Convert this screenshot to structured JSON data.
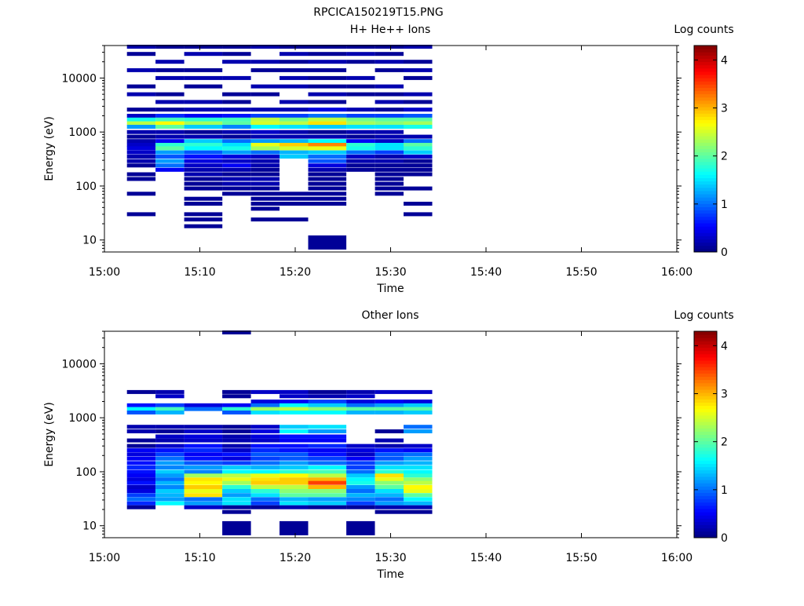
{
  "figure_title": "RPCICA150219T15.PNG",
  "chart_data": [
    {
      "type": "heatmap",
      "title": "H+ He++ Ions",
      "xlabel": "Time",
      "ylabel": "Energy (eV)",
      "x_ticks": [
        "15:00",
        "15:10",
        "15:20",
        "15:30",
        "15:40",
        "15:50",
        "16:00"
      ],
      "x_range": [
        "15:00",
        "16:00"
      ],
      "y_scale": "log",
      "y_ticks": [
        10,
        100,
        1000,
        10000
      ],
      "y_range": [
        6,
        40000
      ],
      "colorbar": {
        "label": "Log counts",
        "range": [
          0,
          4.3
        ],
        "ticks": [
          0,
          1,
          2,
          3,
          4
        ]
      },
      "time_bins": [
        [
          "15:01",
          "15:04"
        ],
        [
          "15:04",
          "15:07"
        ],
        [
          "15:07",
          "15:11"
        ],
        [
          "15:11",
          "15:14"
        ],
        [
          "15:14",
          "15:17"
        ],
        [
          "15:17",
          "15:20"
        ],
        [
          "15:20",
          "15:24"
        ],
        [
          "15:24",
          "15:27"
        ],
        [
          "15:27",
          "15:30"
        ],
        [
          "15:30",
          "15:33"
        ]
      ],
      "energy_rows": [
        {
          "e": 38000,
          "v": [
            0.2,
            0.1,
            0.1,
            0.1,
            0.2,
            0.1,
            0.1,
            0.1,
            0.1,
            0.2
          ]
        },
        {
          "e": 28000,
          "v": [
            0.1,
            null,
            0.2,
            0.1,
            null,
            0.2,
            0.1,
            0.2,
            0.1,
            null
          ]
        },
        {
          "e": 20000,
          "v": [
            null,
            0.2,
            null,
            0.2,
            0.2,
            0.1,
            0.2,
            0.1,
            0.2,
            0.1
          ]
        },
        {
          "e": 14000,
          "v": [
            0.2,
            0.1,
            0.1,
            null,
            0.1,
            0.1,
            0.1,
            null,
            0.1,
            0.2
          ]
        },
        {
          "e": 10000,
          "v": [
            null,
            0.2,
            0.2,
            0.2,
            null,
            0.2,
            0.1,
            0.2,
            null,
            0.1
          ]
        },
        {
          "e": 7000,
          "v": [
            0.1,
            null,
            0.1,
            null,
            0.2,
            0.2,
            0.1,
            0.1,
            0.2,
            null
          ]
        },
        {
          "e": 5000,
          "v": [
            0.2,
            0.1,
            null,
            0.1,
            0.1,
            null,
            0.2,
            0.1,
            0.1,
            0.2
          ]
        },
        {
          "e": 3600,
          "v": [
            null,
            0.2,
            0.2,
            0.1,
            null,
            0.2,
            0.1,
            null,
            0.2,
            0.1
          ]
        },
        {
          "e": 2600,
          "v": [
            0.1,
            0.1,
            0.2,
            0.2,
            0.2,
            0.2,
            0.4,
            0.2,
            0.1,
            0.3
          ]
        },
        {
          "e": 2000,
          "v": [
            0.3,
            0.7,
            0.5,
            0.6,
            0.8,
            0.8,
            1.0,
            0.8,
            0.8,
            0.9
          ]
        },
        {
          "e": 1700,
          "v": [
            1.7,
            1.9,
            1.8,
            1.9,
            2.4,
            2.1,
            2.4,
            2.1,
            2.0,
            2.0
          ]
        },
        {
          "e": 1450,
          "v": [
            2.4,
            2.7,
            2.3,
            2.0,
            2.5,
            2.4,
            2.8,
            2.3,
            2.2,
            2.3
          ]
        },
        {
          "e": 1250,
          "v": [
            1.2,
            2.0,
            1.4,
            1.1,
            1.6,
            1.5,
            1.4,
            1.5,
            1.5,
            1.7
          ]
        },
        {
          "e": 1000,
          "v": [
            0.2,
            0.2,
            0.1,
            0.2,
            0.3,
            0.2,
            0.1,
            0.2,
            0.2,
            null
          ]
        },
        {
          "e": 820,
          "v": [
            0.1,
            0.2,
            0.2,
            0.1,
            0.2,
            0.2,
            0.2,
            0.1,
            0.2,
            0.2
          ]
        },
        {
          "e": 680,
          "v": [
            0.2,
            0.5,
            1.4,
            1.0,
            1.2,
            1.3,
            1.6,
            0.5,
            0.3,
            1.0
          ]
        },
        {
          "e": 580,
          "v": [
            0.3,
            1.8,
            1.8,
            1.5,
            2.6,
            2.9,
            3.2,
            1.8,
            1.5,
            2.0
          ]
        },
        {
          "e": 500,
          "v": [
            0.4,
            2.0,
            1.6,
            1.7,
            2.3,
            2.5,
            2.6,
            1.7,
            1.5,
            1.8
          ]
        },
        {
          "e": 420,
          "v": [
            0.3,
            1.2,
            0.9,
            1.2,
            1.0,
            1.3,
            1.4,
            1.0,
            0.8,
            1.4
          ]
        },
        {
          "e": 350,
          "v": [
            0.2,
            0.9,
            0.6,
            0.4,
            0.3,
            1.4,
            1.0,
            0.3,
            0.2,
            0.3
          ]
        },
        {
          "e": 290,
          "v": [
            0.2,
            1.2,
            0.4,
            0.3,
            0.2,
            null,
            0.9,
            0.2,
            0.2,
            0.1
          ]
        },
        {
          "e": 240,
          "v": [
            0.1,
            1.0,
            0.3,
            0.5,
            0.2,
            null,
            0.4,
            0.1,
            0.1,
            0.1
          ]
        },
        {
          "e": 200,
          "v": [
            null,
            0.5,
            0.2,
            0.2,
            0.1,
            null,
            0.2,
            0.1,
            0.1,
            0.1
          ]
        },
        {
          "e": 165,
          "v": [
            0.1,
            null,
            0.2,
            0.1,
            0.1,
            null,
            0.1,
            null,
            0.1,
            0.1
          ]
        },
        {
          "e": 135,
          "v": [
            0.1,
            null,
            0.1,
            0.2,
            0.2,
            null,
            0.1,
            null,
            0.1,
            null
          ]
        },
        {
          "e": 110,
          "v": [
            null,
            null,
            0.1,
            0.2,
            0.2,
            null,
            0.1,
            null,
            0.1,
            null
          ]
        },
        {
          "e": 90,
          "v": [
            null,
            null,
            0.1,
            0.1,
            0.1,
            null,
            0.1,
            null,
            0.1,
            0.1
          ]
        },
        {
          "e": 72,
          "v": [
            0.1,
            null,
            null,
            0.1,
            0.1,
            0.1,
            0.1,
            null,
            0.1,
            null
          ]
        },
        {
          "e": 58,
          "v": [
            null,
            null,
            0.1,
            null,
            0.1,
            0.1,
            0.1,
            null,
            null,
            null
          ]
        },
        {
          "e": 47,
          "v": [
            null,
            null,
            0.1,
            null,
            0.1,
            0.1,
            0.1,
            null,
            null,
            0.1
          ]
        },
        {
          "e": 38,
          "v": [
            null,
            null,
            null,
            null,
            0.1,
            null,
            null,
            null,
            null,
            null
          ]
        },
        {
          "e": 30,
          "v": [
            0.1,
            null,
            0.1,
            null,
            null,
            null,
            null,
            null,
            null,
            0.1
          ]
        },
        {
          "e": 24,
          "v": [
            null,
            null,
            0.1,
            null,
            0.1,
            0.1,
            null,
            null,
            null,
            null
          ]
        },
        {
          "e": 18,
          "v": [
            null,
            null,
            0.1,
            null,
            null,
            null,
            null,
            null,
            null,
            null
          ]
        },
        {
          "e": 9,
          "v": [
            null,
            null,
            null,
            null,
            null,
            null,
            0.1,
            null,
            null,
            null
          ]
        }
      ]
    },
    {
      "type": "heatmap",
      "title": "Other Ions",
      "xlabel": "Time",
      "ylabel": "Energy (eV)",
      "x_ticks": [
        "15:00",
        "15:10",
        "15:20",
        "15:30",
        "15:40",
        "15:50",
        "16:00"
      ],
      "x_range": [
        "15:00",
        "16:00"
      ],
      "y_scale": "log",
      "y_ticks": [
        10,
        100,
        1000,
        10000
      ],
      "y_range": [
        6,
        40000
      ],
      "colorbar": {
        "label": "Log counts",
        "range": [
          0,
          4.3
        ],
        "ticks": [
          0,
          1,
          2,
          3,
          4
        ]
      },
      "time_bins": [
        [
          "15:01",
          "15:04"
        ],
        [
          "15:04",
          "15:07"
        ],
        [
          "15:07",
          "15:11"
        ],
        [
          "15:11",
          "15:14"
        ],
        [
          "15:14",
          "15:17"
        ],
        [
          "15:17",
          "15:20"
        ],
        [
          "15:20",
          "15:24"
        ],
        [
          "15:24",
          "15:27"
        ],
        [
          "15:27",
          "15:30"
        ],
        [
          "15:30",
          "15:33"
        ]
      ],
      "energy_rows": [
        {
          "e": 38000,
          "v": [
            null,
            null,
            null,
            0.1,
            null,
            null,
            null,
            null,
            null,
            null
          ]
        },
        {
          "e": 3000,
          "v": [
            0.1,
            0.2,
            null,
            0.1,
            0.3,
            0.3,
            0.1,
            0.2,
            0.3,
            0.3
          ]
        },
        {
          "e": 2500,
          "v": [
            null,
            0.3,
            null,
            0.1,
            null,
            0.3,
            0.2,
            0.3,
            null,
            null
          ]
        },
        {
          "e": 2000,
          "v": [
            null,
            null,
            null,
            null,
            0.4,
            0.5,
            0.8,
            0.4,
            0.5,
            0.4
          ]
        },
        {
          "e": 1700,
          "v": [
            0.6,
            0.8,
            0.4,
            0.5,
            1.0,
            1.6,
            1.4,
            1.0,
            1.2,
            1.4
          ]
        },
        {
          "e": 1450,
          "v": [
            1.6,
            1.9,
            1.0,
            1.8,
            2.3,
            2.4,
            2.2,
            2.0,
            2.0,
            2.0
          ]
        },
        {
          "e": 1250,
          "v": [
            0.9,
            1.3,
            null,
            0.9,
            1.5,
            1.6,
            1.6,
            1.3,
            1.3,
            1.4
          ]
        },
        {
          "e": 680,
          "v": [
            0.2,
            0.2,
            0.2,
            0.1,
            0.3,
            1.4,
            1.5,
            null,
            null,
            1.0
          ]
        },
        {
          "e": 560,
          "v": [
            0.2,
            0.1,
            0.3,
            0.1,
            0.4,
            1.6,
            1.2,
            null,
            0.1,
            1.2
          ]
        },
        {
          "e": 450,
          "v": [
            null,
            0.3,
            0.4,
            0.2,
            0.4,
            0.6,
            0.6,
            null,
            null,
            null
          ]
        },
        {
          "e": 380,
          "v": [
            0.1,
            0.2,
            0.3,
            0.2,
            0.3,
            0.5,
            0.5,
            null,
            0.2,
            null
          ]
        },
        {
          "e": 300,
          "v": [
            0.1,
            0.3,
            0.6,
            0.2,
            0.6,
            0.6,
            0.7,
            0.3,
            0.2,
            0.3
          ]
        },
        {
          "e": 250,
          "v": [
            0.5,
            0.6,
            0.7,
            0.3,
            0.7,
            0.6,
            0.5,
            0.4,
            0.6,
            0.5
          ]
        },
        {
          "e": 210,
          "v": [
            0.4,
            0.8,
            0.5,
            0.6,
            0.9,
            0.9,
            0.6,
            0.3,
            0.9,
            1.0
          ]
        },
        {
          "e": 175,
          "v": [
            0.5,
            1.0,
            0.6,
            0.4,
            0.8,
            0.9,
            0.8,
            0.5,
            0.9,
            1.2
          ]
        },
        {
          "e": 145,
          "v": [
            0.6,
            1.2,
            0.9,
            0.8,
            1.0,
            1.2,
            1.0,
            0.8,
            1.2,
            1.3
          ]
        },
        {
          "e": 120,
          "v": [
            0.7,
            1.1,
            1.2,
            1.4,
            1.3,
            1.4,
            1.6,
            0.8,
            1.5,
            1.5
          ]
        },
        {
          "e": 100,
          "v": [
            0.6,
            1.4,
            1.1,
            1.6,
            1.6,
            1.8,
            1.9,
            1.0,
            1.8,
            1.6
          ]
        },
        {
          "e": 85,
          "v": [
            0.5,
            1.2,
            2.3,
            2.4,
            2.6,
            2.7,
            2.4,
            1.4,
            2.8,
            1.8
          ]
        },
        {
          "e": 72,
          "v": [
            0.4,
            1.0,
            2.8,
            2.6,
            2.8,
            2.9,
            3.0,
            1.6,
            2.6,
            2.2
          ]
        },
        {
          "e": 62,
          "v": [
            0.6,
            1.3,
            2.7,
            2.3,
            2.9,
            2.9,
            3.5,
            1.7,
            2.2,
            2.4
          ]
        },
        {
          "e": 52,
          "v": [
            0.3,
            1.1,
            2.9,
            1.8,
            2.4,
            2.4,
            3.0,
            1.2,
            2.0,
            2.7
          ]
        },
        {
          "e": 44,
          "v": [
            0.4,
            1.4,
            2.6,
            1.4,
            1.8,
            2.2,
            2.2,
            1.0,
            1.5,
            2.6
          ]
        },
        {
          "e": 37,
          "v": [
            0.8,
            1.3,
            2.8,
            1.2,
            1.5,
            2.0,
            2.0,
            1.3,
            1.3,
            2.0
          ]
        },
        {
          "e": 31,
          "v": [
            1.0,
            1.2,
            1.0,
            1.5,
            1.0,
            1.3,
            1.2,
            1.1,
            1.0,
            1.6
          ]
        },
        {
          "e": 26,
          "v": [
            0.7,
            1.6,
            1.2,
            1.5,
            0.8,
            1.5,
            1.4,
            0.8,
            1.2,
            1.3
          ]
        },
        {
          "e": 22,
          "v": [
            0.1,
            null,
            0.3,
            0.1,
            0.1,
            0.2,
            0.1,
            0.1,
            0.2,
            0.2
          ]
        },
        {
          "e": 18,
          "v": [
            null,
            null,
            null,
            0.1,
            null,
            null,
            null,
            null,
            0.1,
            0.1
          ]
        },
        {
          "e": 9,
          "v": [
            null,
            null,
            null,
            0.1,
            null,
            0.1,
            null,
            0.1,
            null,
            null
          ]
        }
      ]
    }
  ]
}
